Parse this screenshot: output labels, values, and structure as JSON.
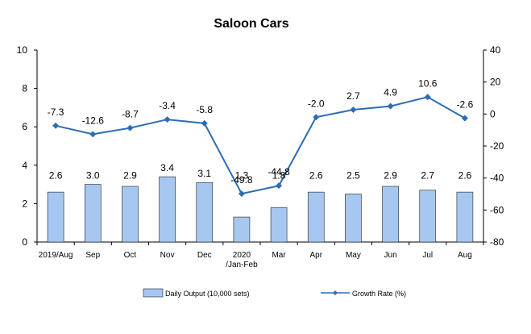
{
  "chart_data": {
    "type": "bar",
    "title": "Saloon Cars",
    "categories": [
      "2019/Aug",
      "Sep",
      "Oct",
      "Nov",
      "Dec",
      "2020\n/Jan-Feb",
      "Mar",
      "Apr",
      "May",
      "Jun",
      "Jul",
      "Aug"
    ],
    "series": [
      {
        "name": "Daily Output (10,000 sets)",
        "type": "bar",
        "axis": "left",
        "values": [
          2.6,
          3.0,
          2.9,
          3.4,
          3.1,
          1.3,
          1.8,
          2.6,
          2.5,
          2.9,
          2.7,
          2.6
        ],
        "labels": [
          "2.6",
          "3.0",
          "2.9",
          "3.4",
          "3.1",
          "1.3",
          "1.8",
          "2.6",
          "2.5",
          "2.9",
          "2.7",
          "2.6"
        ],
        "color": "#a6c8f0",
        "stroke": "#1f1f1f"
      },
      {
        "name": "Growth Rate (%)",
        "type": "line",
        "axis": "right",
        "values": [
          -7.3,
          -12.6,
          -8.7,
          -3.4,
          -5.8,
          -49.8,
          -44.8,
          -2.0,
          2.7,
          4.9,
          10.6,
          -2.6
        ],
        "labels": [
          "-7.3",
          "-12.6",
          "-8.7",
          "-3.4",
          "-5.8",
          "-49.8",
          "-44.8",
          "-2.0",
          "2.7",
          "4.9",
          "10.6",
          "-2.6"
        ],
        "color": "#2e6db4"
      }
    ],
    "left_axis": {
      "min": 0,
      "max": 10,
      "ticks": [
        0,
        2,
        4,
        6,
        8,
        10
      ]
    },
    "right_axis": {
      "min": -80,
      "max": 40,
      "ticks": [
        -80,
        -60,
        -40,
        -20,
        0,
        20,
        40
      ]
    },
    "grid": false,
    "legend_position": "bottom"
  }
}
